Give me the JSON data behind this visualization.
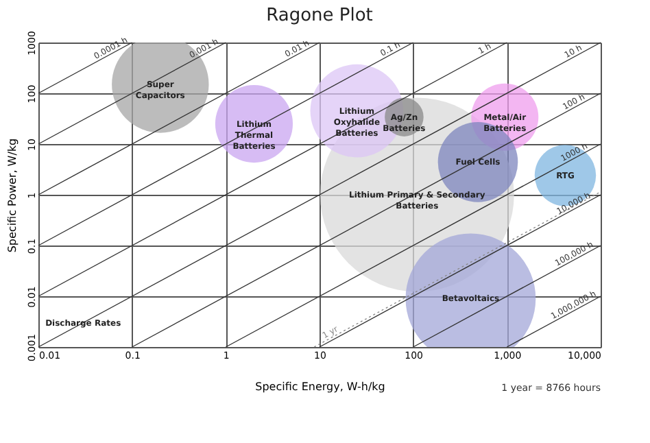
{
  "chart_data": {
    "type": "bubble",
    "title": "Ragone Plot",
    "xlabel": "Specific Energy, W-h/kg",
    "ylabel": "Specific Power, W/kg",
    "log": "xy",
    "grid": true,
    "xlim": [
      0.01,
      10000
    ],
    "ylim": [
      0.001,
      1000
    ],
    "xticks": [
      0.01,
      0.1,
      1,
      10,
      100,
      {
        "value": 1000,
        "label": "1,000"
      },
      {
        "value": 10000,
        "label": "10,000"
      }
    ],
    "yticks": [
      0.001,
      0.01,
      0.1,
      1,
      10,
      100,
      1000
    ],
    "series": [
      {
        "color": "#d9d9d9",
        "x": [
          110
        ],
        "values": [
          1
        ],
        "sizes": [
          1
        ]
      },
      {
        "color": "#a6a6a6",
        "x": [
          0.2
        ],
        "values": [
          150
        ],
        "sizes": [
          0.25
        ]
      },
      {
        "color": "#c9a6f0",
        "x": [
          2
        ],
        "values": [
          25
        ],
        "sizes": [
          0.16
        ]
      },
      {
        "color": "#dcc6f5",
        "x": [
          25
        ],
        "values": [
          45
        ],
        "sizes": [
          0.23
        ]
      },
      {
        "color": "#8a8a8a",
        "x": [
          80
        ],
        "values": [
          34
        ],
        "sizes": [
          0.04
        ]
      },
      {
        "color": "#ef9ded",
        "x": [
          950
        ],
        "values": [
          34
        ],
        "sizes": [
          0.12
        ]
      },
      {
        "color": "#7d86bd",
        "x": [
          490
        ],
        "values": [
          4.4
        ],
        "sizes": [
          0.17
        ]
      },
      {
        "color": "#7fb5e0",
        "x": [
          4200
        ],
        "values": [
          2.4
        ],
        "sizes": [
          0.1
        ]
      },
      {
        "color": "#a3a7d8",
        "x": [
          410
        ],
        "values": [
          0.009
        ],
        "sizes": [
          0.45
        ]
      },
      {
        "type": "line",
        "name": "0.0001 h",
        "color": "#333333",
        "x": [
          0.01,
          0.1
        ],
        "values": [
          100,
          1000
        ]
      },
      {
        "type": "line",
        "name": "0.001 h",
        "color": "#333333",
        "x": [
          0.01,
          1
        ],
        "values": [
          10,
          1000
        ]
      },
      {
        "type": "line",
        "name": "0.01 h",
        "color": "#333333",
        "x": [
          0.01,
          10
        ],
        "values": [
          1,
          1000
        ]
      },
      {
        "type": "line",
        "name": "0.1 h",
        "color": "#333333",
        "x": [
          0.01,
          100
        ],
        "values": [
          0.1,
          1000
        ]
      },
      {
        "type": "line",
        "name": "1 h",
        "color": "#333333",
        "x": [
          0.01,
          1000
        ],
        "values": [
          0.01,
          1000
        ]
      },
      {
        "type": "line",
        "name": "10 h",
        "color": "#333333",
        "x": [
          0.01,
          10000
        ],
        "values": [
          0.001,
          1000
        ]
      },
      {
        "type": "line",
        "name": "100 h",
        "color": "#333333",
        "x": [
          0.1,
          10000
        ],
        "values": [
          0.001,
          100
        ]
      },
      {
        "type": "line",
        "name": "1000 h",
        "color": "#333333",
        "x": [
          1,
          10000
        ],
        "values": [
          0.001,
          10
        ]
      },
      {
        "type": "line",
        "name": "10,000 h",
        "color": "#333333",
        "x": [
          10,
          10000
        ],
        "values": [
          0.001,
          1
        ]
      },
      {
        "type": "line",
        "name": "100,000 h",
        "color": "#333333",
        "x": [
          100,
          10000
        ],
        "values": [
          0.001,
          0.1
        ]
      },
      {
        "type": "line",
        "name": "1,000,000 h",
        "color": "#333333",
        "x": [
          1000,
          10000
        ],
        "values": [
          0.001,
          0.01
        ]
      },
      {
        "type": "line",
        "name": "1 yr",
        "color": "#888888",
        "line_style": "dotted",
        "x": [
          8.766,
          10000
        ],
        "values": [
          0.001,
          1.141
        ]
      }
    ],
    "annotations": [
      {
        "text": "Super\nCapacitors",
        "x": 0.2,
        "y": 150
      },
      {
        "text": "Lithium\nThermal\nBatteries",
        "x": 2,
        "y": 25
      },
      {
        "text": "Lithium\nOxyhalide\nBatteries",
        "x": 25,
        "y": 45
      },
      {
        "text": "Ag/Zn\nBatteries",
        "x": 80,
        "y": 34
      },
      {
        "text": "Metal/Air\nBatteries",
        "x": 950,
        "y": 34
      },
      {
        "text": "Fuel Cells",
        "x": 490,
        "y": 4.4
      },
      {
        "text": "RTG",
        "x": 4200,
        "y": 2.4
      },
      {
        "text": "Lithium Primary & Secondary\nBatteries",
        "x": 110,
        "y": 1
      },
      {
        "text": "Betavoltaics",
        "x": 410,
        "y": 0.009
      },
      {
        "text": "Discharge Rates",
        "x": 0.03,
        "y": 0.003
      },
      "1 year = 8766 hours"
    ]
  }
}
